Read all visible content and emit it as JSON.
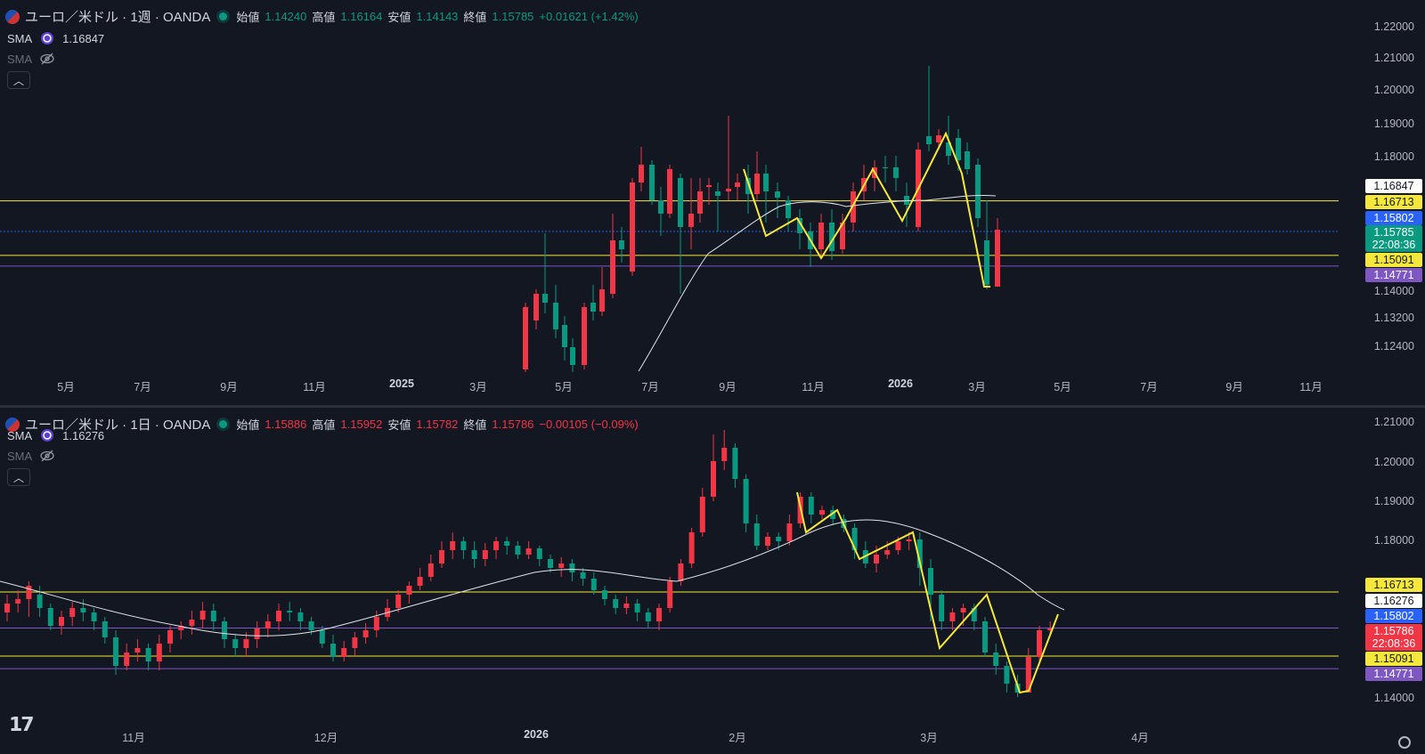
{
  "colors": {
    "up": "#089981",
    "down": "#f23645",
    "yellow": "#f5e83b",
    "purple": "#7e57c2",
    "blue": "#2962ff",
    "sma": "#e1e3e8",
    "bg": "#131722"
  },
  "top": {
    "symbol": "ユーロ／米ドル · 1週 · OANDA",
    "open_label": "始値",
    "open": "1.14240",
    "high_label": "高値",
    "high": "1.16164",
    "low_label": "安値",
    "low": "1.14143",
    "close_label": "終値",
    "close": "1.15785",
    "change": "+0.01621 (+1.42%)",
    "sma1_label": "SMA",
    "sma1_value": "1.16847",
    "sma2_label": "SMA",
    "collapse_icon": "chevron-up-icon",
    "y_ticks": [
      "1.22000",
      "1.21000",
      "1.20000",
      "1.19000",
      "1.18000",
      "1.14000",
      "1.13200",
      "1.12400"
    ],
    "x_ticks": [
      "5月",
      "7月",
      "9月",
      "11月",
      "2025",
      "3月",
      "5月",
      "7月",
      "9月",
      "11月",
      "2026",
      "3月",
      "5月",
      "7月",
      "9月",
      "11月"
    ],
    "price_labels": [
      {
        "text": "1.16847",
        "kind": "sma"
      },
      {
        "text": "1.16713",
        "kind": "yellow"
      },
      {
        "text": "1.15802",
        "kind": "blue"
      },
      {
        "text": "1.15785",
        "kind": "up"
      },
      {
        "text": "22:08:36",
        "kind": "up"
      },
      {
        "text": "1.15091",
        "kind": "yellow"
      },
      {
        "text": "1.14771",
        "kind": "purple"
      }
    ],
    "levels": {
      "yellow_upper": 1.16713,
      "blue_dotted": 1.15802,
      "yellow_lower": 1.15091,
      "purple": 1.14771
    }
  },
  "bottom": {
    "symbol": "ユーロ／米ドル · 1日 · OANDA",
    "open_label": "始値",
    "open": "1.15886",
    "high_label": "高値",
    "high": "1.15952",
    "low_label": "安値",
    "low": "1.15782",
    "close_label": "終値",
    "close": "1.15786",
    "change": "−0.00105 (−0.09%)",
    "sma1_label": "SMA",
    "sma1_value": "1.16276",
    "sma2_label": "SMA",
    "collapse_icon": "chevron-up-icon",
    "y_ticks": [
      "1.21000",
      "1.20000",
      "1.19000",
      "1.18000",
      "1.14000"
    ],
    "x_ticks": [
      "11月",
      "12月",
      "2026",
      "2月",
      "3月",
      "4月"
    ],
    "price_labels": [
      {
        "text": "1.16713",
        "kind": "yellow"
      },
      {
        "text": "1.16276",
        "kind": "sma"
      },
      {
        "text": "1.15802",
        "kind": "blue"
      },
      {
        "text": "1.15786",
        "kind": "down"
      },
      {
        "text": "22:08:36",
        "kind": "down"
      },
      {
        "text": "1.15091",
        "kind": "yellow"
      },
      {
        "text": "1.14771",
        "kind": "purple"
      }
    ],
    "levels": {
      "yellow_upper": 1.16713,
      "purple_dotted": 1.15802,
      "yellow_lower": 1.15091,
      "purple": 1.14771
    }
  },
  "logo_icon": "tradingview-logo-icon",
  "settings_icon": "gear-icon"
}
